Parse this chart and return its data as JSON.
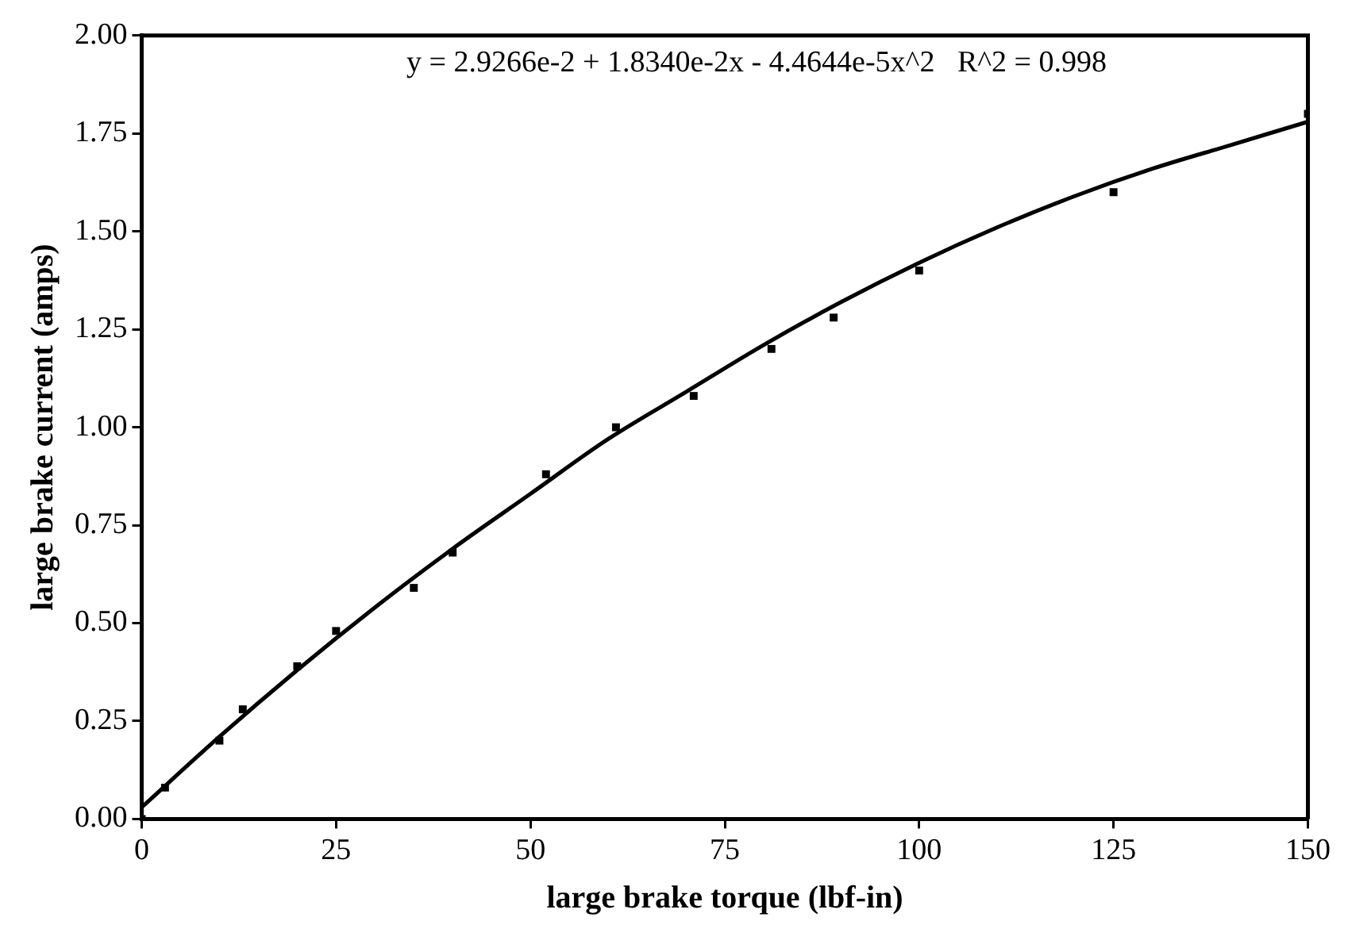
{
  "chart_data": {
    "type": "scatter",
    "xlabel": "large brake torque (lbf-in)",
    "ylabel": "large brake current (amps)",
    "annotations": [
      "y = 2.9266e-2 + 1.8340e-2x - 4.4644e-5x^2   R^2 = 0.998"
    ],
    "xlim": [
      0,
      150
    ],
    "xticks": [
      0,
      25,
      50,
      75,
      100,
      125,
      150
    ],
    "ylim": [
      0,
      2
    ],
    "yticks": [
      {
        "value": 0,
        "label": "0.00"
      },
      {
        "value": 0.25,
        "label": "0.25"
      },
      {
        "value": 0.5,
        "label": "0.50"
      },
      {
        "value": 0.75,
        "label": "0.75"
      },
      {
        "value": 1,
        "label": "1.00"
      },
      {
        "value": 1.25,
        "label": "1.25"
      },
      {
        "value": 1.5,
        "label": "1.50"
      },
      {
        "value": 1.75,
        "label": "1.75"
      },
      {
        "value": 2,
        "label": "2.00"
      }
    ],
    "grid": false,
    "legend": false,
    "series": [
      {
        "marker": "square",
        "color": "#000000",
        "x": [
          0,
          3,
          10,
          13,
          20,
          25,
          35,
          40,
          52,
          61,
          71,
          81,
          89,
          100,
          125,
          150
        ],
        "values": [
          0,
          0.08,
          0.2,
          0.28,
          0.39,
          0.48,
          0.59,
          0.68,
          0.88,
          1.0,
          1.08,
          1.2,
          1.28,
          1.4,
          1.6,
          1.8
        ]
      },
      {
        "type": "line",
        "marker": "none",
        "color": "#000000",
        "line_style": "solid",
        "x": [
          0,
          10,
          20,
          30,
          40,
          50,
          60,
          70,
          80,
          90,
          100,
          110,
          120,
          130,
          140,
          150
        ],
        "values": [
          0.03,
          0.21,
          0.38,
          0.54,
          0.69,
          0.83,
          0.97,
          1.09,
          1.21,
          1.32,
          1.42,
          1.51,
          1.59,
          1.66,
          1.72,
          1.78
        ]
      }
    ]
  }
}
